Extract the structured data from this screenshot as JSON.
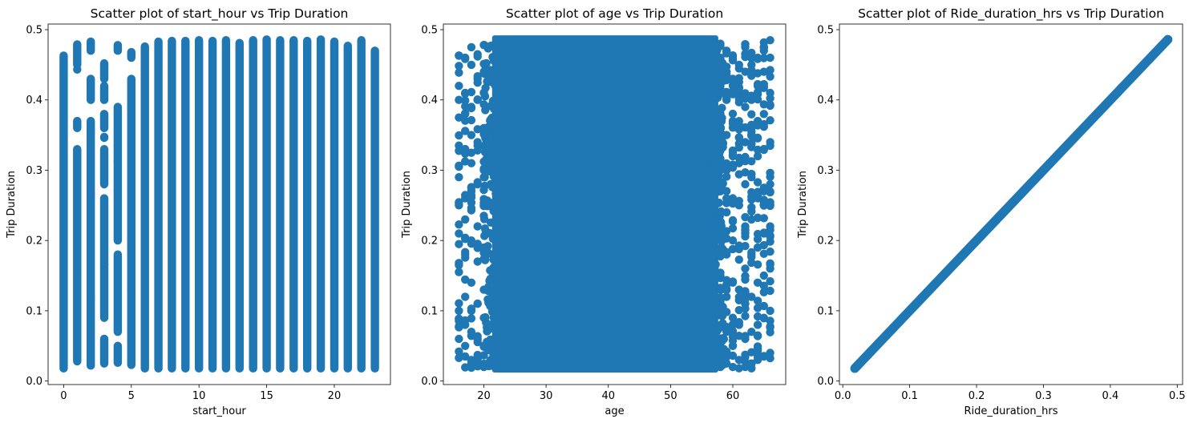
{
  "colors": {
    "marker": "#1f77b4",
    "axis": "#000000",
    "background": "#ffffff"
  },
  "chart_data": [
    {
      "type": "scatter",
      "title": "Scatter plot of start_hour vs Trip Duration",
      "xlabel": "start_hour",
      "ylabel": "Trip Duration",
      "xlim": [
        -1.15,
        24.15
      ],
      "ylim": [
        -0.005,
        0.508
      ],
      "xticks": [
        0,
        5,
        10,
        15,
        20
      ],
      "yticks": [
        0.0,
        0.1,
        0.2,
        0.3,
        0.4,
        0.5
      ],
      "grid": false,
      "series": [
        {
          "x": [
            0,
            1,
            2,
            3,
            4,
            5,
            6,
            7,
            8,
            9,
            10,
            11,
            12,
            13,
            14,
            15,
            16,
            17,
            18,
            19,
            20,
            21,
            22,
            23
          ],
          "y_min": [
            0.018,
            0.028,
            0.022,
            0.025,
            0.026,
            0.023,
            0.018,
            0.018,
            0.018,
            0.018,
            0.018,
            0.018,
            0.018,
            0.018,
            0.018,
            0.018,
            0.018,
            0.018,
            0.018,
            0.018,
            0.018,
            0.018,
            0.018,
            0.018
          ],
          "y_max": [
            0.463,
            0.479,
            0.483,
            0.452,
            0.478,
            0.468,
            0.476,
            0.483,
            0.484,
            0.484,
            0.485,
            0.484,
            0.485,
            0.481,
            0.485,
            0.486,
            0.485,
            0.485,
            0.484,
            0.486,
            0.483,
            0.477,
            0.485,
            0.47
          ],
          "gaps": [
            [],
            [
              [
                0.37,
                0.45
              ],
              [
                0.33,
                0.36
              ],
              [
                0.02,
                0.03
              ]
            ],
            [
              [
                0.43,
                0.47
              ],
              [
                0.37,
                0.4
              ]
            ],
            [
              [
                0.42,
                0.43
              ],
              [
                0.38,
                0.4
              ],
              [
                0.33,
                0.36
              ],
              [
                0.06,
                0.09
              ],
              [
                0.26,
                0.28
              ]
            ],
            [
              [
                0.39,
                0.47
              ],
              [
                0.18,
                0.2
              ],
              [
                0.05,
                0.07
              ]
            ],
            [
              [
                0.43,
                0.46
              ]
            ],
            [],
            [],
            [],
            [],
            [],
            [],
            [],
            [],
            [],
            [],
            [],
            [],
            [],
            [],
            [],
            [],
            [],
            []
          ]
        }
      ]
    },
    {
      "type": "scatter",
      "title": "Scatter plot of age vs Trip Duration",
      "xlabel": "age",
      "ylabel": "Trip Duration",
      "xlim": [
        13.5,
        68.5
      ],
      "ylim": [
        -0.005,
        0.508
      ],
      "xticks": [
        20,
        30,
        40,
        50,
        60
      ],
      "yticks": [
        0.0,
        0.1,
        0.2,
        0.3,
        0.4,
        0.5
      ],
      "grid": false,
      "series": [
        {
          "x_range": [
            16,
            66
          ],
          "y_range": [
            0.018,
            0.486
          ],
          "dense_x_range": [
            22,
            57
          ],
          "sparse_columns": [
            {
              "x": 16,
              "y": [
                0.042,
                0.06,
                0.078,
                0.1,
                0.155,
                0.165,
                0.21,
                0.25,
                0.29,
                0.305,
                0.375,
                0.4,
                0.42,
                0.463
              ]
            },
            {
              "x": 17,
              "y": [
                0.035,
                0.05,
                0.08,
                0.12,
                0.18,
                0.23,
                0.26,
                0.33,
                0.38,
                0.41,
                0.46
              ]
            },
            {
              "x": 18,
              "y": [
                0.03,
                0.07,
                0.1,
                0.14,
                0.2,
                0.27,
                0.31,
                0.35,
                0.39,
                0.45,
                0.475
              ]
            },
            {
              "x": 19,
              "y": [
                0.025,
                0.06,
                0.11,
                0.17,
                0.22,
                0.28,
                0.34,
                0.4,
                0.43,
                0.465
              ]
            },
            {
              "x": 20,
              "y": [
                0.02,
                0.05,
                0.09,
                0.13,
                0.19,
                0.25,
                0.3,
                0.36,
                0.41,
                0.44,
                0.478
              ]
            },
            {
              "x": 58,
              "y": [
                0.02,
                0.06,
                0.1,
                0.15,
                0.21,
                0.27,
                0.33,
                0.38,
                0.42,
                0.46,
                0.48
              ]
            },
            {
              "x": 59,
              "y": [
                0.025,
                0.07,
                0.12,
                0.18,
                0.24,
                0.3,
                0.35,
                0.4,
                0.44,
                0.47
              ]
            },
            {
              "x": 60,
              "y": [
                0.02,
                0.05,
                0.09,
                0.14,
                0.2,
                0.26,
                0.32,
                0.37,
                0.43,
                0.46
              ]
            },
            {
              "x": 61,
              "y": [
                0.03,
                0.08,
                0.13,
                0.19,
                0.25,
                0.31,
                0.36,
                0.41,
                0.45
              ]
            },
            {
              "x": 62,
              "y": [
                0.02,
                0.06,
                0.11,
                0.16,
                0.22,
                0.28,
                0.34,
                0.39,
                0.44,
                0.475
              ]
            },
            {
              "x": 63,
              "y": [
                0.025,
                0.07,
                0.12,
                0.18,
                0.23,
                0.29,
                0.35,
                0.4,
                0.45
              ]
            },
            {
              "x": 64,
              "y": [
                0.03,
                0.08,
                0.14,
                0.19,
                0.26,
                0.32,
                0.37,
                0.42,
                0.46
              ]
            },
            {
              "x": 65,
              "y": [
                0.035,
                0.09,
                0.15,
                0.21,
                0.27,
                0.33,
                0.38,
                0.44,
                0.47
              ]
            },
            {
              "x": 66,
              "y": [
                0.04,
                0.1,
                0.16,
                0.22,
                0.28,
                0.34,
                0.41,
                0.46,
                0.485
              ]
            }
          ]
        }
      ]
    },
    {
      "type": "scatter",
      "title": "Scatter plot of Ride_duration_hrs vs Trip Duration",
      "xlabel": "Ride_duration_hrs",
      "ylabel": "Trip Duration",
      "xlim": [
        -0.005,
        0.508
      ],
      "ylim": [
        -0.005,
        0.508
      ],
      "xticks": [
        0.0,
        0.1,
        0.2,
        0.3,
        0.4,
        0.5
      ],
      "yticks": [
        0.0,
        0.1,
        0.2,
        0.3,
        0.4,
        0.5
      ],
      "grid": false,
      "series": [
        {
          "x_range": [
            0.018,
            0.486
          ],
          "relation": "y = x"
        }
      ]
    }
  ]
}
